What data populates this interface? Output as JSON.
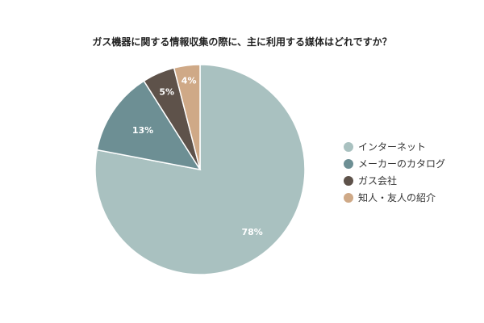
{
  "chart_data": {
    "type": "pie",
    "title": "ガス機器に関する情報収集の際に、主に利用する媒体はどれですか？",
    "categories": [
      "インターネット",
      "メーカーのカタログ",
      "ガス会社",
      "知人・友人の紹介"
    ],
    "values": [
      78,
      13,
      5,
      4
    ],
    "value_labels": [
      "78%",
      "13%",
      "5%",
      "4%"
    ],
    "colors": [
      "#a9c1c0",
      "#6d8f94",
      "#5e524a",
      "#cfa987"
    ],
    "legend_position": "right"
  }
}
